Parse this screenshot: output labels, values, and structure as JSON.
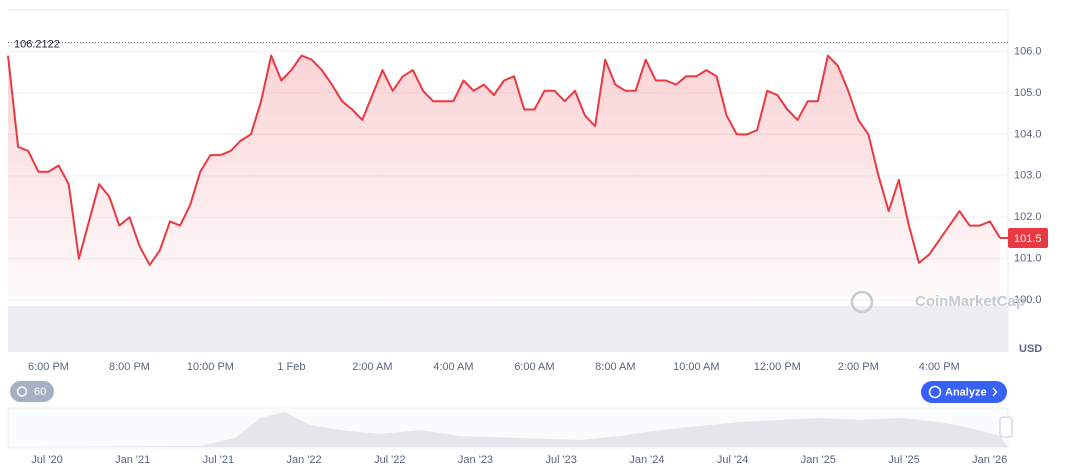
{
  "chart_data": {
    "type": "line",
    "categories": [
      null,
      null,
      null,
      null,
      "6:00 PM",
      null,
      null,
      null,
      null,
      null,
      null,
      null,
      "8:00 PM",
      null,
      null,
      null,
      null,
      null,
      null,
      null,
      "10:00 PM",
      null,
      null,
      null,
      null,
      null,
      null,
      null,
      "1 Feb",
      null,
      null,
      null,
      null,
      null,
      null,
      null,
      "2:00 AM",
      null,
      null,
      null,
      null,
      null,
      null,
      null,
      "4:00 AM",
      null,
      null,
      null,
      null,
      null,
      null,
      null,
      "6:00 AM",
      null,
      null,
      null,
      null,
      null,
      null,
      null,
      "8:00 AM",
      null,
      null,
      null,
      null,
      null,
      null,
      null,
      "10:00 AM",
      null,
      null,
      null,
      null,
      null,
      null,
      null,
      "12:00 PM",
      null,
      null,
      null,
      null,
      null,
      null,
      null,
      "2:00 PM",
      null,
      null,
      null,
      null,
      null,
      null,
      null,
      "4:00 PM",
      null,
      null,
      null,
      null,
      null,
      null
    ],
    "series": [
      {
        "color": "#ea3943",
        "values": [
          105.9,
          103.7,
          103.6,
          103.1,
          103.1,
          103.25,
          102.8,
          101.0,
          101.9,
          102.8,
          102.5,
          101.8,
          102.0,
          101.3,
          100.85,
          101.2,
          101.9,
          101.8,
          102.3,
          103.1,
          103.5,
          103.5,
          103.6,
          103.85,
          104.0,
          104.8,
          105.9,
          105.3,
          105.55,
          105.9,
          105.8,
          105.55,
          105.2,
          104.8,
          104.6,
          104.35,
          104.95,
          105.55,
          105.05,
          105.4,
          105.55,
          105.05,
          104.8,
          104.8,
          104.8,
          105.3,
          105.05,
          105.2,
          104.95,
          105.3,
          105.4,
          104.6,
          104.6,
          105.05,
          105.05,
          104.8,
          105.05,
          104.45,
          104.2,
          105.8,
          105.2,
          105.05,
          105.05,
          105.8,
          105.3,
          105.3,
          105.2,
          105.4,
          105.4,
          105.55,
          105.4,
          104.45,
          104.0,
          104.0,
          104.1,
          105.05,
          104.95,
          104.6,
          104.35,
          104.8,
          104.8,
          105.9,
          105.65,
          105.05,
          104.35,
          104.0,
          103.0,
          102.15,
          102.9,
          101.8,
          100.9,
          101.1,
          101.45,
          101.8,
          102.15,
          101.8,
          101.8,
          101.9,
          101.5
        ]
      }
    ],
    "ylim": [
      98.75,
      107.0
    ],
    "yticks": [
      {
        "value": 100,
        "label": "100.0"
      },
      {
        "value": 101,
        "label": "101.0"
      },
      {
        "value": 102,
        "label": "102.0"
      },
      {
        "value": 103,
        "label": "103.0"
      },
      {
        "value": 104,
        "label": "104.0"
      },
      {
        "value": 105,
        "label": "105.0"
      },
      {
        "value": 106,
        "label": "106.0"
      }
    ],
    "grid": true,
    "max_value": 106.2122,
    "last_value_label": 101.5,
    "y_axis_label": "USD",
    "watermark": "CoinMarketCap"
  },
  "controls": {
    "interval": "60",
    "analyze_button": "Analyze"
  },
  "navigator": {
    "labels": [
      "Jul '20",
      "Jan '21",
      "Jul '21",
      "Jan '22",
      "Jul '22",
      "Jan '23",
      "Jul '23",
      "Jan '24",
      "Jul '24",
      "Jan '25",
      "Jul '25",
      "Jan '26"
    ]
  }
}
